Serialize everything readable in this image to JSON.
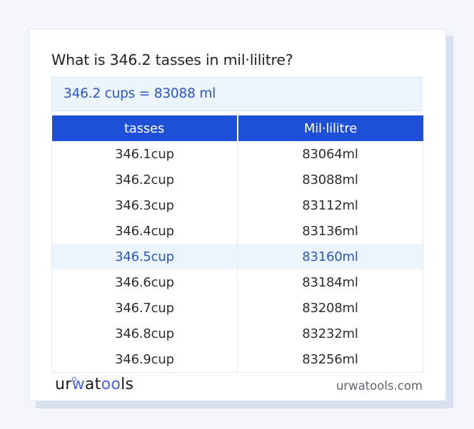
{
  "title": "What is 346.2 tasses in mil·lilitre?",
  "result": "346.2 cups = 83088 ml",
  "table": {
    "headers": [
      "tasses",
      "Mil·lilitre"
    ],
    "rows": [
      {
        "from": "346.1cup",
        "to": "83064ml"
      },
      {
        "from": "346.2cup",
        "to": "83088ml"
      },
      {
        "from": "346.3cup",
        "to": "83112ml"
      },
      {
        "from": "346.4cup",
        "to": "83136ml"
      },
      {
        "from": "346.5cup",
        "to": "83160ml",
        "highlighted": true
      },
      {
        "from": "346.6cup",
        "to": "83184ml"
      },
      {
        "from": "346.7cup",
        "to": "83208ml"
      },
      {
        "from": "346.8cup",
        "to": "83232ml"
      },
      {
        "from": "346.9cup",
        "to": "83256ml"
      }
    ]
  },
  "footer": {
    "logo": {
      "part1": "ur",
      "part2": "w",
      "part3": "at",
      "part4": "oo",
      "part5": "ls"
    },
    "site": "urwatools.com"
  },
  "colors": {
    "header_bg": "#1d4fd8",
    "accent_text": "#2a56c6",
    "highlight_bg": "#ecf4fd",
    "logo_accent": "#4a63e8"
  }
}
